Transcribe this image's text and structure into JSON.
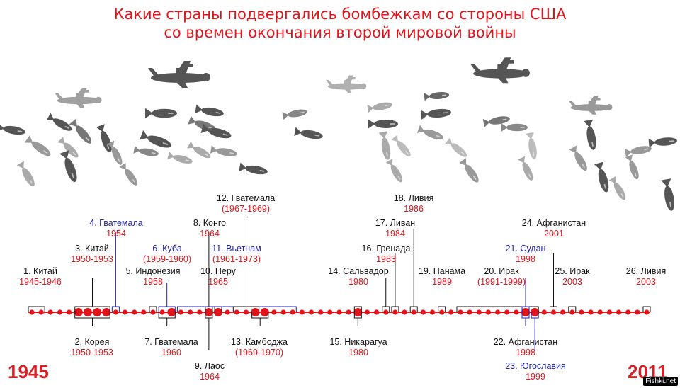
{
  "title": {
    "line1": "Какие страны подвергались бомбежкам со стороны США",
    "line2": "со времен окончания второй мировой войны"
  },
  "timeline": {
    "start": "1945",
    "end": "2011"
  },
  "events_above": [
    {
      "name": "1. Китай",
      "years": "1945-1946"
    },
    {
      "name": "3. Китай",
      "years": "1950-1953"
    },
    {
      "name": "4. Гватемала",
      "years": "1954"
    },
    {
      "name": "5. Индонезия",
      "years": "1958"
    },
    {
      "name": "6. Куба",
      "years": "(1959-1960)"
    },
    {
      "name": "8. Конго",
      "years": "1964"
    },
    {
      "name": "10. Перу",
      "years": "1965"
    },
    {
      "name": "11. Вьетнам",
      "years": "(1961-1973)"
    },
    {
      "name": "12. Гватемала",
      "years": "(1967-1969)"
    },
    {
      "name": "14. Сальвадор",
      "years": "1980"
    },
    {
      "name": "16. Гренада",
      "years": "1983"
    },
    {
      "name": "17. Ливан",
      "years": "1984"
    },
    {
      "name": "18. Ливия",
      "years": "1986"
    },
    {
      "name": "19. Панама",
      "years": "1989"
    },
    {
      "name": "20. Ирак",
      "years": "(1991-1999)"
    },
    {
      "name": "21. Судан",
      "years": "1998"
    },
    {
      "name": "24. Афганистан",
      "years": "2001"
    },
    {
      "name": "25. Ирак",
      "years": "2003"
    },
    {
      "name": "26. Ливия",
      "years": "2003"
    }
  ],
  "events_below": [
    {
      "name": "2. Корея",
      "years": "1950-1953"
    },
    {
      "name": "7. Гватемала",
      "years": "1960"
    },
    {
      "name": "9. Лаос",
      "years": "1964"
    },
    {
      "name": "13. Камбоджа",
      "years": "(1969-1970)"
    },
    {
      "name": "15. Никарагуа",
      "years": "1980"
    },
    {
      "name": "22. Афганистан",
      "years": "1998"
    },
    {
      "name": "23. Югославия",
      "years": "1999"
    }
  ],
  "colors": {
    "red": "#e2141b",
    "blue": "#1f22a3",
    "bombs": "#555555"
  },
  "watermark": "Fishki.net"
}
